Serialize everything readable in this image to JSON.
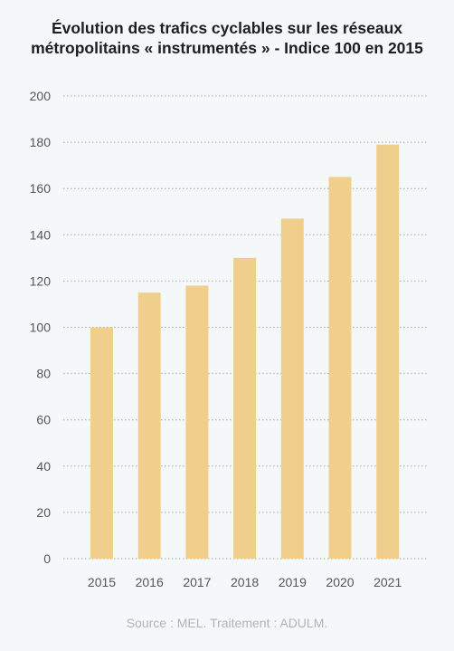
{
  "chart_data": {
    "type": "bar",
    "title_line1": "Évolution des trafics cyclables sur les réseaux",
    "title_line2": "métropolitains « instrumentés » - Indice 100 en 2015",
    "categories": [
      "2015",
      "2016",
      "2017",
      "2018",
      "2019",
      "2020",
      "2021"
    ],
    "values": [
      100,
      115,
      118,
      130,
      147,
      165,
      179
    ],
    "ylim": [
      0,
      200
    ],
    "yticks": [
      0,
      20,
      40,
      60,
      80,
      100,
      120,
      140,
      160,
      180,
      200
    ],
    "grid": true,
    "bar_color": "#f0cf8c",
    "grid_color": "#a6a6a6"
  },
  "footer": {
    "source": "Source : MEL. Traitement : ADULM."
  }
}
